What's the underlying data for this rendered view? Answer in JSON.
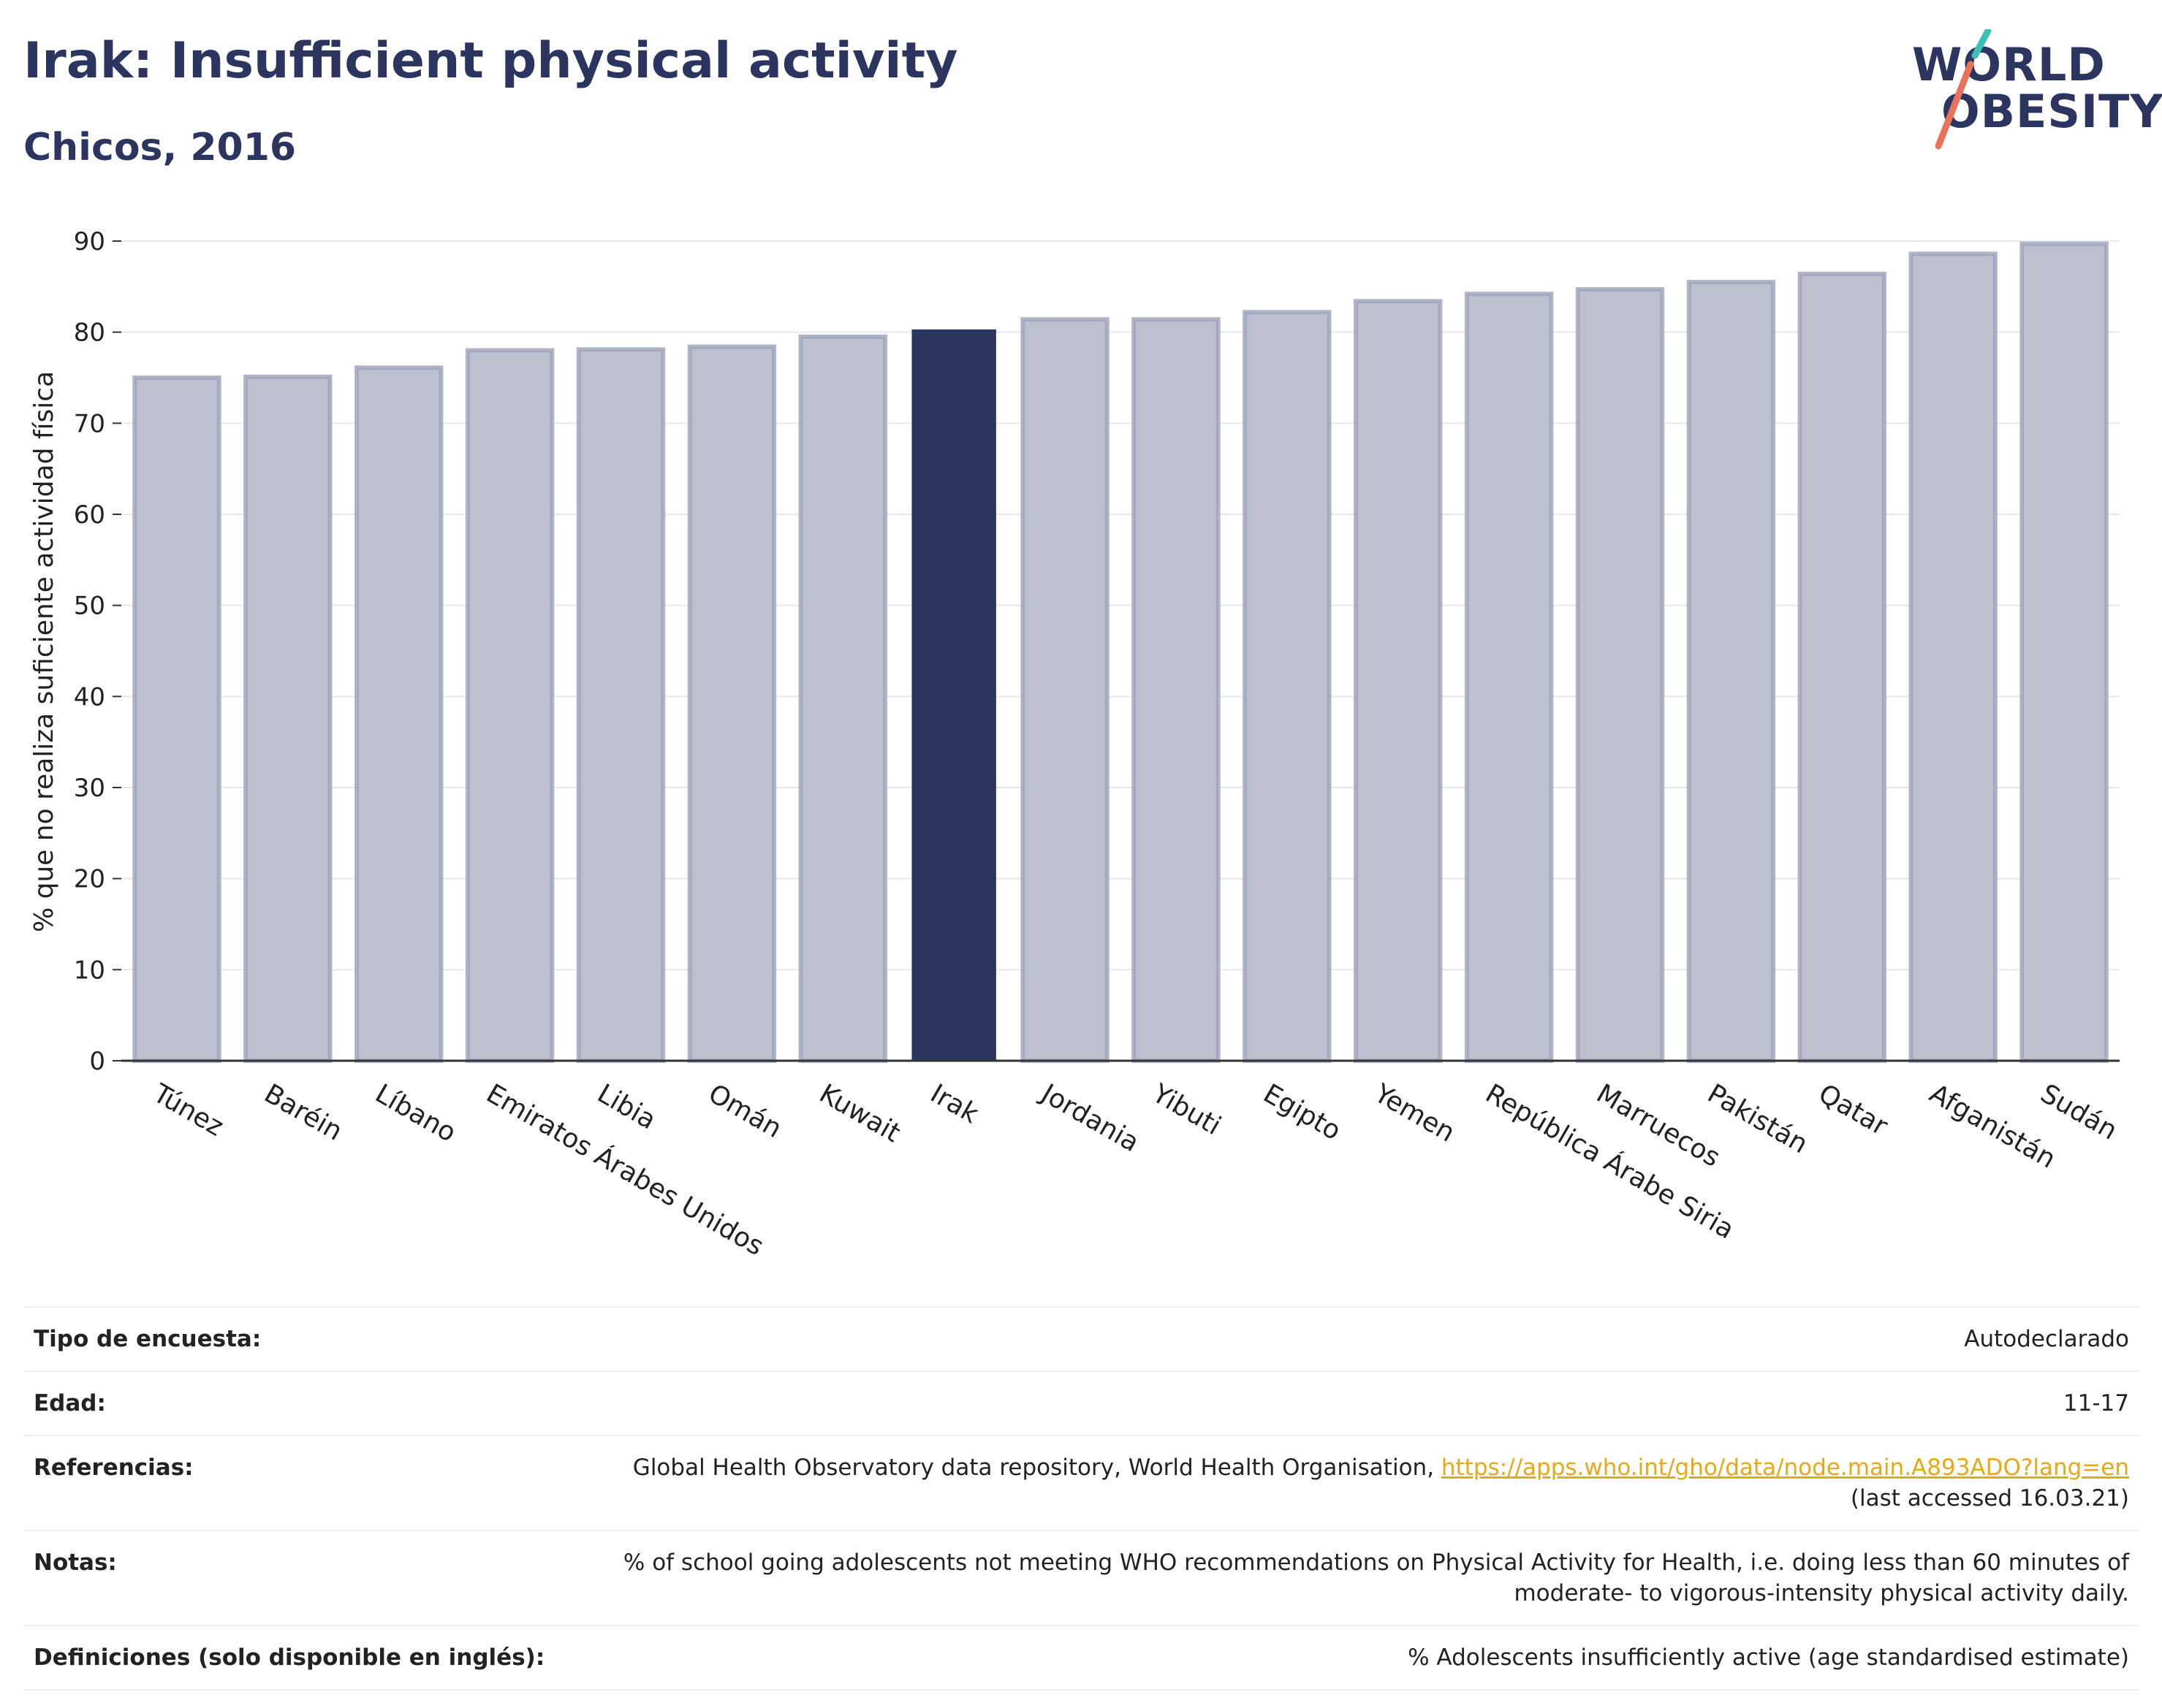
{
  "header": {
    "title": "Irak: Insufficient physical activity",
    "subtitle": "Chicos, 2016"
  },
  "logo": {
    "line1": "WORLD",
    "line2": "OBESITY"
  },
  "chart_data": {
    "type": "bar",
    "categories": [
      "Túnez",
      "Baréin",
      "Líbano",
      "Emiratos Árabes Unidos",
      "Libia",
      "Omán",
      "Kuwait",
      "Irak",
      "Jordania",
      "Yibuti",
      "Egipto",
      "Yemen",
      "República Árabe Siria",
      "Marruecos",
      "Pakistán",
      "Qatar",
      "Afganistán",
      "Sudán"
    ],
    "values": [
      75.0,
      75.1,
      76.1,
      78.0,
      78.1,
      78.4,
      79.5,
      80.3,
      81.4,
      81.4,
      82.2,
      83.4,
      84.2,
      84.7,
      85.5,
      86.4,
      88.6,
      89.7
    ],
    "highlight": "Irak",
    "ylabel": "% que no realiza suficiente actividad física",
    "ylim": [
      0,
      90
    ],
    "yticks": [
      0,
      10,
      20,
      30,
      40,
      50,
      60,
      70,
      80,
      90
    ],
    "grid": true,
    "colors": {
      "bar": "#bcc0cf",
      "bar_edge": "#9ea3bc",
      "highlight": "#2b3560"
    }
  },
  "info": [
    {
      "label": "Tipo de encuesta:",
      "value": "Autodeclarado"
    },
    {
      "label": "Edad:",
      "value": "11-17"
    },
    {
      "label": "Referencias:",
      "value": "Global Health Observatory data repository, World Health Organisation, ",
      "link": "https://apps.who.int/gho/data/node.main.A893ADO?lang=en",
      "value2": "(last accessed 16.03.21)"
    },
    {
      "label": "Notas:",
      "value": "% of school going adolescents not meeting WHO recommendations on Physical Activity for Health, i.e. doing less than 60 minutes of moderate- to vigorous-intensity physical activity daily."
    },
    {
      "label": "Definiciones (solo disponible en inglés):",
      "value": "% Adolescents insufficiently active (age standardised estimate)"
    }
  ]
}
